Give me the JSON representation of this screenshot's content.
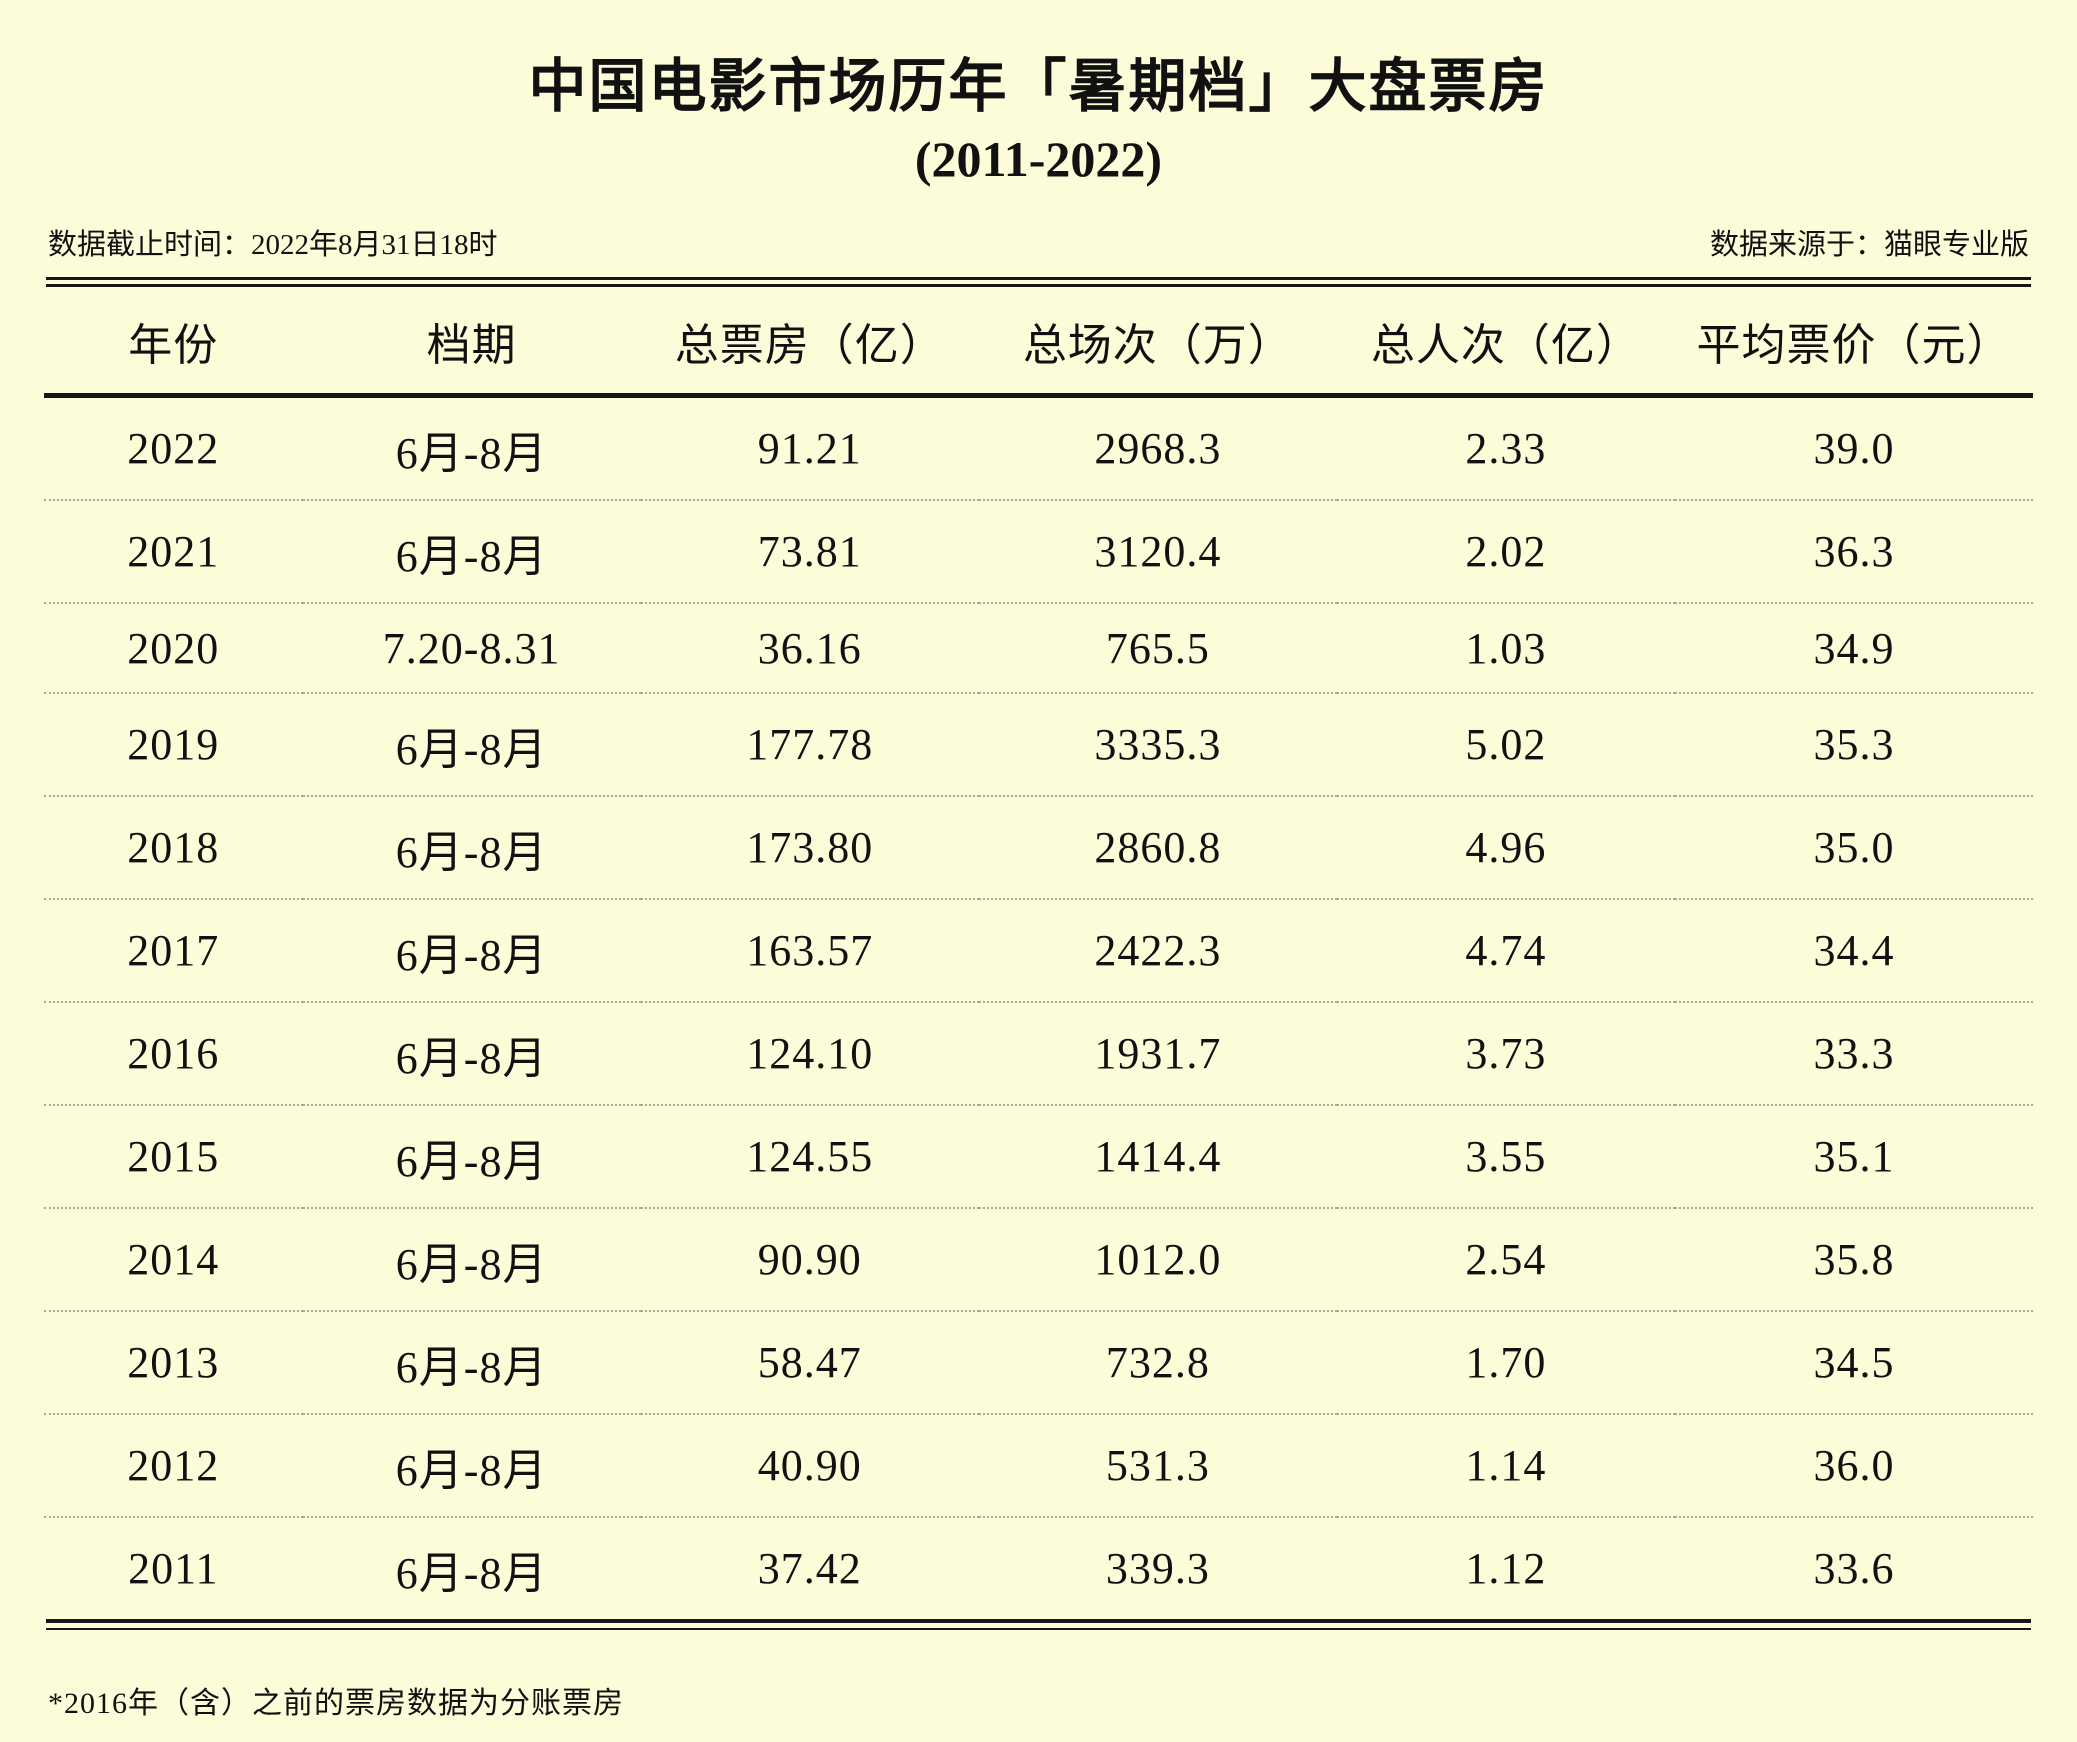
{
  "page": {
    "title": "中国电影市场历年「暑期档」大盘票房",
    "subtitle": "(2011-2022)",
    "meta_left": "数据截止时间：2022年8月31日18时",
    "meta_right": "数据来源于：猫眼专业版",
    "footnote": "*2016年（含）之前的票房数据为分账票房"
  },
  "colors": {
    "background": "#FCFCD9",
    "text": "#111111",
    "rule": "#161616",
    "dotted_divider": "#A9A99A"
  },
  "chart_data": {
    "type": "table",
    "title": "中国电影市场历年「暑期档」大盘票房 (2011-2022)",
    "columns": [
      "年份",
      "档期",
      "总票房（亿）",
      "总场次（万）",
      "总人次（亿）",
      "平均票价（元）"
    ],
    "rows": [
      [
        "2022",
        "6月-8月",
        "91.21",
        "2968.3",
        "2.33",
        "39.0"
      ],
      [
        "2021",
        "6月-8月",
        "73.81",
        "3120.4",
        "2.02",
        "36.3"
      ],
      [
        "2020",
        "7.20-8.31",
        "36.16",
        "765.5",
        "1.03",
        "34.9"
      ],
      [
        "2019",
        "6月-8月",
        "177.78",
        "3335.3",
        "5.02",
        "35.3"
      ],
      [
        "2018",
        "6月-8月",
        "173.80",
        "2860.8",
        "4.96",
        "35.0"
      ],
      [
        "2017",
        "6月-8月",
        "163.57",
        "2422.3",
        "4.74",
        "34.4"
      ],
      [
        "2016",
        "6月-8月",
        "124.10",
        "1931.7",
        "3.73",
        "33.3"
      ],
      [
        "2015",
        "6月-8月",
        "124.55",
        "1414.4",
        "3.55",
        "35.1"
      ],
      [
        "2014",
        "6月-8月",
        "90.90",
        "1012.0",
        "2.54",
        "35.8"
      ],
      [
        "2013",
        "6月-8月",
        "58.47",
        "732.8",
        "1.70",
        "34.5"
      ],
      [
        "2012",
        "6月-8月",
        "40.90",
        "531.3",
        "1.14",
        "36.0"
      ],
      [
        "2011",
        "6月-8月",
        "37.42",
        "339.3",
        "1.12",
        "33.6"
      ]
    ],
    "notes": [
      "数据截止时间：2022年8月31日18时",
      "数据来源于：猫眼专业版",
      "*2016年（含）之前的票房数据为分账票房"
    ]
  }
}
